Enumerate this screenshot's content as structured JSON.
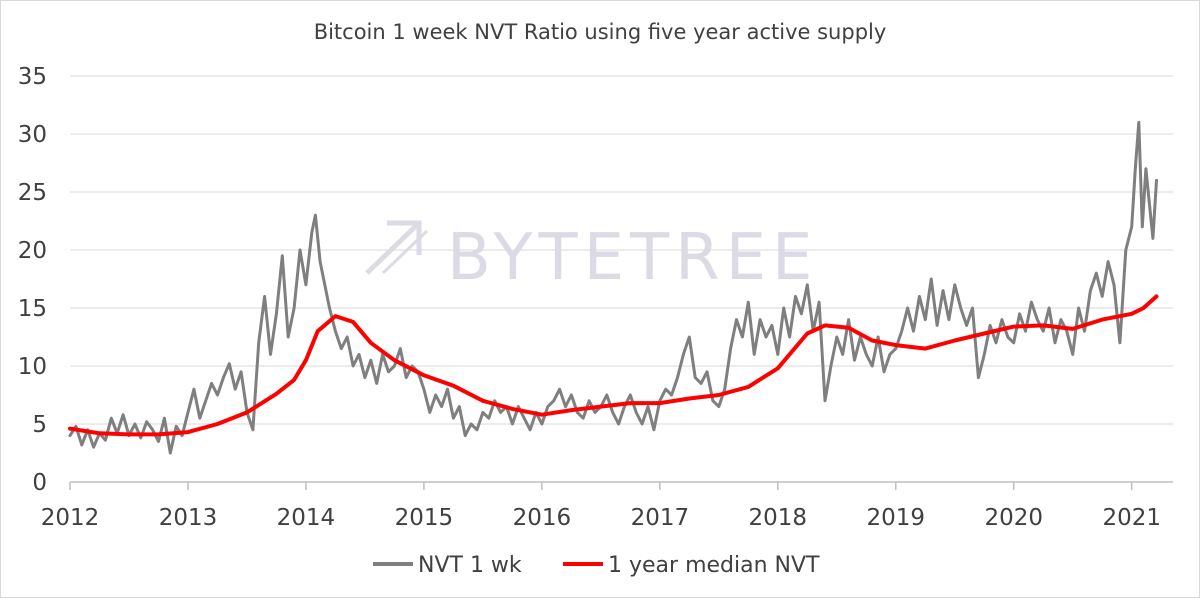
{
  "chart_data": {
    "type": "line",
    "title": "Bitcoin 1 week NVT Ratio using five year active supply",
    "xlabel": "",
    "ylabel": "",
    "xlim": [
      2012,
      2021.35
    ],
    "ylim": [
      0,
      35
    ],
    "y_ticks": [
      "0",
      "5",
      "10",
      "15",
      "20",
      "25",
      "30",
      "35"
    ],
    "x_ticks": [
      "2012",
      "2013",
      "2014",
      "2015",
      "2016",
      "2017",
      "2018",
      "2019",
      "2020",
      "2021"
    ],
    "grid": "horizontal",
    "legend_position": "bottom",
    "watermark": "BYTETREE",
    "series": [
      {
        "name": "NVT 1 wk",
        "color": "#7f7f7f",
        "points": [
          [
            2012.0,
            4.0
          ],
          [
            2012.05,
            4.8
          ],
          [
            2012.1,
            3.2
          ],
          [
            2012.15,
            4.5
          ],
          [
            2012.2,
            3.0
          ],
          [
            2012.25,
            4.2
          ],
          [
            2012.3,
            3.6
          ],
          [
            2012.35,
            5.5
          ],
          [
            2012.4,
            4.2
          ],
          [
            2012.45,
            5.8
          ],
          [
            2012.5,
            4.0
          ],
          [
            2012.55,
            5.0
          ],
          [
            2012.6,
            3.8
          ],
          [
            2012.65,
            5.2
          ],
          [
            2012.7,
            4.5
          ],
          [
            2012.75,
            3.5
          ],
          [
            2012.8,
            5.5
          ],
          [
            2012.85,
            2.5
          ],
          [
            2012.9,
            4.8
          ],
          [
            2012.95,
            4.0
          ],
          [
            2013.0,
            6.0
          ],
          [
            2013.05,
            8.0
          ],
          [
            2013.1,
            5.5
          ],
          [
            2013.15,
            7.0
          ],
          [
            2013.2,
            8.5
          ],
          [
            2013.25,
            7.5
          ],
          [
            2013.3,
            9.0
          ],
          [
            2013.35,
            10.2
          ],
          [
            2013.4,
            8.0
          ],
          [
            2013.45,
            9.5
          ],
          [
            2013.5,
            6.0
          ],
          [
            2013.55,
            4.5
          ],
          [
            2013.6,
            12.0
          ],
          [
            2013.65,
            16.0
          ],
          [
            2013.7,
            11.0
          ],
          [
            2013.75,
            14.5
          ],
          [
            2013.8,
            19.5
          ],
          [
            2013.85,
            12.5
          ],
          [
            2013.9,
            15.0
          ],
          [
            2013.95,
            20.0
          ],
          [
            2014.0,
            17.0
          ],
          [
            2014.05,
            21.5
          ],
          [
            2014.08,
            23.0
          ],
          [
            2014.12,
            19.0
          ],
          [
            2014.16,
            17.0
          ],
          [
            2014.2,
            15.0
          ],
          [
            2014.25,
            13.0
          ],
          [
            2014.3,
            11.5
          ],
          [
            2014.35,
            12.5
          ],
          [
            2014.4,
            10.0
          ],
          [
            2014.45,
            11.0
          ],
          [
            2014.5,
            9.0
          ],
          [
            2014.55,
            10.5
          ],
          [
            2014.6,
            8.5
          ],
          [
            2014.65,
            11.0
          ],
          [
            2014.7,
            9.5
          ],
          [
            2014.75,
            10.0
          ],
          [
            2014.8,
            11.5
          ],
          [
            2014.85,
            9.0
          ],
          [
            2014.9,
            10.0
          ],
          [
            2014.95,
            9.5
          ],
          [
            2015.0,
            8.0
          ],
          [
            2015.05,
            6.0
          ],
          [
            2015.1,
            7.5
          ],
          [
            2015.15,
            6.5
          ],
          [
            2015.2,
            8.0
          ],
          [
            2015.25,
            5.5
          ],
          [
            2015.3,
            6.5
          ],
          [
            2015.35,
            4.0
          ],
          [
            2015.4,
            5.0
          ],
          [
            2015.45,
            4.5
          ],
          [
            2015.5,
            6.0
          ],
          [
            2015.55,
            5.5
          ],
          [
            2015.6,
            7.0
          ],
          [
            2015.65,
            6.0
          ],
          [
            2015.7,
            6.5
          ],
          [
            2015.75,
            5.0
          ],
          [
            2015.8,
            6.5
          ],
          [
            2015.85,
            5.5
          ],
          [
            2015.9,
            4.5
          ],
          [
            2015.95,
            6.0
          ],
          [
            2016.0,
            5.0
          ],
          [
            2016.05,
            6.5
          ],
          [
            2016.1,
            7.0
          ],
          [
            2016.15,
            8.0
          ],
          [
            2016.2,
            6.5
          ],
          [
            2016.25,
            7.5
          ],
          [
            2016.3,
            6.0
          ],
          [
            2016.35,
            5.5
          ],
          [
            2016.4,
            7.0
          ],
          [
            2016.45,
            6.0
          ],
          [
            2016.5,
            6.5
          ],
          [
            2016.55,
            7.5
          ],
          [
            2016.6,
            6.0
          ],
          [
            2016.65,
            5.0
          ],
          [
            2016.7,
            6.5
          ],
          [
            2016.75,
            7.5
          ],
          [
            2016.8,
            6.0
          ],
          [
            2016.85,
            5.0
          ],
          [
            2016.9,
            6.5
          ],
          [
            2016.95,
            4.5
          ],
          [
            2017.0,
            7.0
          ],
          [
            2017.05,
            8.0
          ],
          [
            2017.1,
            7.5
          ],
          [
            2017.15,
            9.0
          ],
          [
            2017.2,
            11.0
          ],
          [
            2017.25,
            12.5
          ],
          [
            2017.3,
            9.0
          ],
          [
            2017.35,
            8.5
          ],
          [
            2017.4,
            9.5
          ],
          [
            2017.45,
            7.0
          ],
          [
            2017.5,
            6.5
          ],
          [
            2017.55,
            8.0
          ],
          [
            2017.6,
            11.5
          ],
          [
            2017.65,
            14.0
          ],
          [
            2017.7,
            12.5
          ],
          [
            2017.75,
            15.5
          ],
          [
            2017.8,
            11.0
          ],
          [
            2017.85,
            14.0
          ],
          [
            2017.9,
            12.5
          ],
          [
            2017.95,
            13.5
          ],
          [
            2018.0,
            11.0
          ],
          [
            2018.05,
            15.0
          ],
          [
            2018.1,
            12.5
          ],
          [
            2018.15,
            16.0
          ],
          [
            2018.2,
            14.5
          ],
          [
            2018.25,
            17.0
          ],
          [
            2018.3,
            13.0
          ],
          [
            2018.35,
            15.5
          ],
          [
            2018.4,
            7.0
          ],
          [
            2018.45,
            10.0
          ],
          [
            2018.5,
            12.5
          ],
          [
            2018.55,
            11.0
          ],
          [
            2018.6,
            14.0
          ],
          [
            2018.65,
            10.5
          ],
          [
            2018.7,
            12.5
          ],
          [
            2018.75,
            11.0
          ],
          [
            2018.8,
            10.0
          ],
          [
            2018.85,
            12.5
          ],
          [
            2018.9,
            9.5
          ],
          [
            2018.95,
            11.0
          ],
          [
            2019.0,
            11.5
          ],
          [
            2019.05,
            13.0
          ],
          [
            2019.1,
            15.0
          ],
          [
            2019.15,
            13.0
          ],
          [
            2019.2,
            16.0
          ],
          [
            2019.25,
            14.0
          ],
          [
            2019.3,
            17.5
          ],
          [
            2019.35,
            13.5
          ],
          [
            2019.4,
            16.5
          ],
          [
            2019.45,
            14.0
          ],
          [
            2019.5,
            17.0
          ],
          [
            2019.55,
            15.0
          ],
          [
            2019.6,
            13.5
          ],
          [
            2019.65,
            15.0
          ],
          [
            2019.7,
            9.0
          ],
          [
            2019.75,
            11.0
          ],
          [
            2019.8,
            13.5
          ],
          [
            2019.85,
            12.0
          ],
          [
            2019.9,
            14.0
          ],
          [
            2019.95,
            12.5
          ],
          [
            2020.0,
            12.0
          ],
          [
            2020.05,
            14.5
          ],
          [
            2020.1,
            13.0
          ],
          [
            2020.15,
            15.5
          ],
          [
            2020.2,
            14.0
          ],
          [
            2020.25,
            13.0
          ],
          [
            2020.3,
            15.0
          ],
          [
            2020.35,
            12.0
          ],
          [
            2020.4,
            14.0
          ],
          [
            2020.45,
            13.0
          ],
          [
            2020.5,
            11.0
          ],
          [
            2020.55,
            15.0
          ],
          [
            2020.6,
            13.0
          ],
          [
            2020.65,
            16.5
          ],
          [
            2020.7,
            18.0
          ],
          [
            2020.75,
            16.0
          ],
          [
            2020.8,
            19.0
          ],
          [
            2020.85,
            17.0
          ],
          [
            2020.9,
            12.0
          ],
          [
            2020.95,
            20.0
          ],
          [
            2021.0,
            22.0
          ],
          [
            2021.03,
            27.0
          ],
          [
            2021.06,
            31.0
          ],
          [
            2021.09,
            22.0
          ],
          [
            2021.12,
            27.0
          ],
          [
            2021.15,
            24.0
          ],
          [
            2021.18,
            21.0
          ],
          [
            2021.21,
            26.0
          ]
        ]
      },
      {
        "name": "1 year median NVT",
        "color": "#ff0000",
        "points": [
          [
            2012.0,
            4.6
          ],
          [
            2012.25,
            4.2
          ],
          [
            2012.5,
            4.1
          ],
          [
            2012.75,
            4.1
          ],
          [
            2013.0,
            4.3
          ],
          [
            2013.25,
            5.0
          ],
          [
            2013.5,
            6.0
          ],
          [
            2013.75,
            7.6
          ],
          [
            2013.9,
            8.8
          ],
          [
            2014.0,
            10.5
          ],
          [
            2014.1,
            13.0
          ],
          [
            2014.25,
            14.3
          ],
          [
            2014.4,
            13.8
          ],
          [
            2014.55,
            12.0
          ],
          [
            2014.75,
            10.5
          ],
          [
            2015.0,
            9.2
          ],
          [
            2015.25,
            8.3
          ],
          [
            2015.5,
            7.0
          ],
          [
            2015.75,
            6.3
          ],
          [
            2016.0,
            5.8
          ],
          [
            2016.25,
            6.2
          ],
          [
            2016.5,
            6.5
          ],
          [
            2016.75,
            6.8
          ],
          [
            2017.0,
            6.8
          ],
          [
            2017.25,
            7.2
          ],
          [
            2017.5,
            7.5
          ],
          [
            2017.75,
            8.2
          ],
          [
            2018.0,
            9.8
          ],
          [
            2018.25,
            12.8
          ],
          [
            2018.4,
            13.5
          ],
          [
            2018.6,
            13.3
          ],
          [
            2018.8,
            12.2
          ],
          [
            2019.0,
            11.8
          ],
          [
            2019.25,
            11.5
          ],
          [
            2019.5,
            12.2
          ],
          [
            2019.75,
            12.8
          ],
          [
            2020.0,
            13.4
          ],
          [
            2020.25,
            13.5
          ],
          [
            2020.5,
            13.2
          ],
          [
            2020.75,
            14.0
          ],
          [
            2021.0,
            14.5
          ],
          [
            2021.1,
            15.0
          ],
          [
            2021.21,
            16.0
          ]
        ]
      }
    ]
  }
}
